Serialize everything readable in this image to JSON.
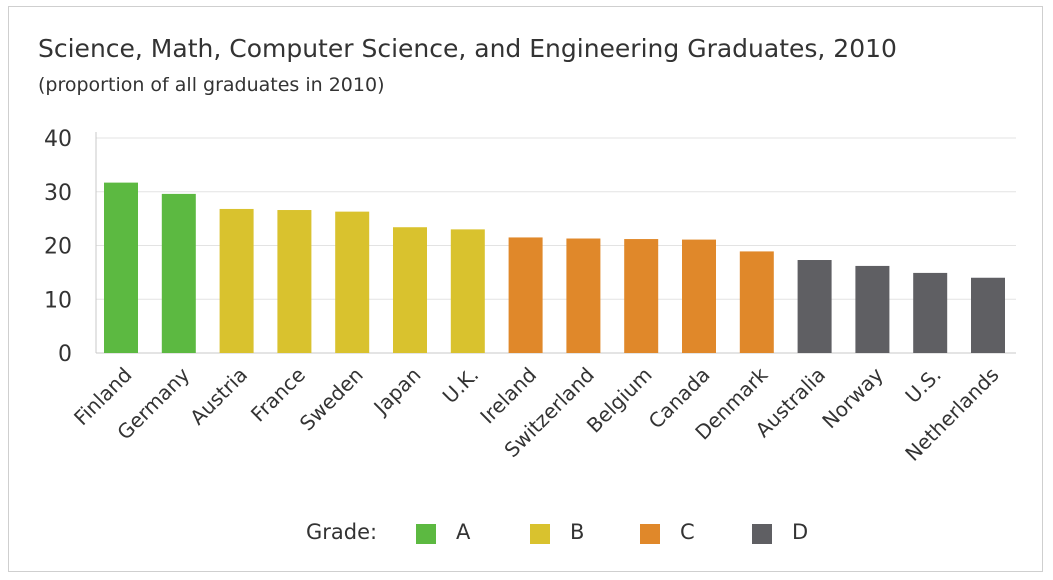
{
  "chart_data": {
    "type": "bar",
    "title": "Science, Math, Computer Science, and Engineering Graduates, 2010",
    "subtitle": "(proportion of all graduates in 2010)",
    "xlabel": "",
    "ylabel": "",
    "ylim": [
      0,
      40
    ],
    "yticks": [
      0,
      10,
      20,
      30,
      40
    ],
    "grid": true,
    "legend_position": "bottom",
    "categories": [
      "Finland",
      "Germany",
      "Austria",
      "France",
      "Sweden",
      "Japan",
      "U.K.",
      "Ireland",
      "Switzerland",
      "Belgium",
      "Canada",
      "Denmark",
      "Australia",
      "Norway",
      "U.S.",
      "Netherlands"
    ],
    "values": [
      31.7,
      29.6,
      26.8,
      26.6,
      26.3,
      23.4,
      23.0,
      21.5,
      21.3,
      21.2,
      21.1,
      18.9,
      17.3,
      16.2,
      14.9,
      14.0
    ],
    "grades": [
      "A",
      "A",
      "B",
      "B",
      "B",
      "B",
      "B",
      "C",
      "C",
      "C",
      "C",
      "C",
      "D",
      "D",
      "D",
      "D"
    ]
  },
  "legend": {
    "title": "Grade:",
    "items": [
      {
        "label": "A",
        "color": "#5cb941"
      },
      {
        "label": "B",
        "color": "#d9c22e"
      },
      {
        "label": "C",
        "color": "#e0882a"
      },
      {
        "label": "D",
        "color": "#5f5f63"
      }
    ]
  }
}
